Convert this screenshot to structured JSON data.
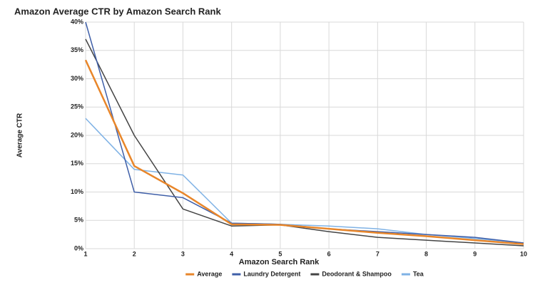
{
  "chart_data": {
    "type": "line",
    "title": "Amazon Average CTR by Amazon Search Rank",
    "xlabel": "Amazon Search Rank",
    "ylabel": "Average CTR",
    "x": [
      1,
      2,
      3,
      4,
      5,
      6,
      7,
      8,
      9,
      10
    ],
    "series": [
      {
        "name": "Average",
        "color": "#e8862a",
        "values": [
          33.3,
          14.6,
          9.8,
          4.3,
          4.2,
          3.5,
          2.8,
          2.2,
          1.5,
          0.8
        ]
      },
      {
        "name": "Laundry Detergent",
        "color": "#3f5fa8",
        "values": [
          40,
          10,
          9,
          4.5,
          4.3,
          3.5,
          3,
          2.5,
          2,
          1
        ]
      },
      {
        "name": "Deodorant & Shampoo",
        "color": "#444444",
        "values": [
          37,
          20,
          7,
          4,
          4.2,
          3,
          2,
          1.5,
          1,
          0.5
        ]
      },
      {
        "name": "Tea",
        "color": "#7fb2e5",
        "values": [
          23,
          14,
          13,
          4.5,
          4.3,
          4,
          3.5,
          2.5,
          1.8,
          1
        ]
      }
    ],
    "xlim": [
      1,
      10
    ],
    "xticks": [
      1,
      2,
      3,
      4,
      5,
      6,
      7,
      8,
      9,
      10
    ],
    "ylim": [
      0,
      40
    ],
    "yticks": [
      {
        "value": 0,
        "label": "0%"
      },
      {
        "value": 5,
        "label": "5%"
      },
      {
        "value": 10,
        "label": "10%"
      },
      {
        "value": 15,
        "label": "15%"
      },
      {
        "value": 20,
        "label": "20%"
      },
      {
        "value": 25,
        "label": "25%"
      },
      {
        "value": 30,
        "label": "30%"
      },
      {
        "value": 35,
        "label": "35%"
      },
      {
        "value": 40,
        "label": "40%"
      }
    ],
    "grid": true,
    "legend": "bottom"
  }
}
